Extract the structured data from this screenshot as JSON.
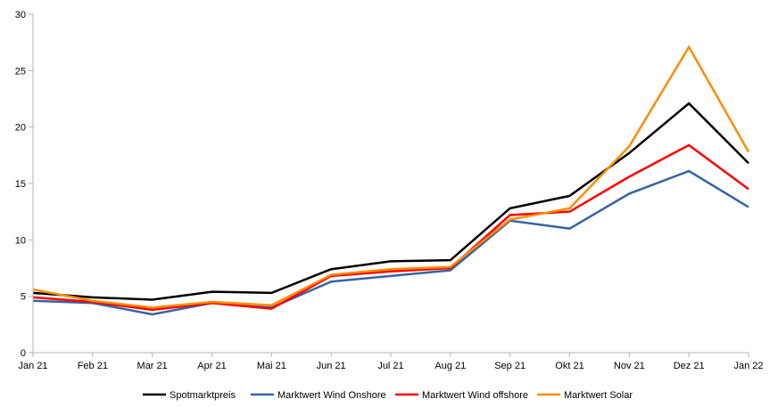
{
  "chart_data": {
    "type": "line",
    "title": "",
    "xlabel": "",
    "ylabel": "",
    "ylim": [
      0,
      30
    ],
    "yticks": [
      0,
      5,
      10,
      15,
      20,
      25,
      30
    ],
    "grid": false,
    "legend_position": "bottom",
    "categories": [
      "Jan 21",
      "Feb 21",
      "Mar 21",
      "Apr 21",
      "Mai 21",
      "Jun 21",
      "Jul 21",
      "Aug 21",
      "Sep 21",
      "Okt 21",
      "Nov 21",
      "Dez 21",
      "Jan 22"
    ],
    "series": [
      {
        "name": "Spotmarktpreis",
        "color": "#000000",
        "values": [
          5.3,
          4.9,
          4.7,
          5.4,
          5.3,
          7.4,
          8.1,
          8.2,
          12.8,
          13.9,
          17.7,
          22.1,
          16.8
        ]
      },
      {
        "name": "Marktwert Wind Onshore",
        "color": "#3465a4",
        "values": [
          4.6,
          4.4,
          3.4,
          4.4,
          4.0,
          6.3,
          6.8,
          7.3,
          11.7,
          11.0,
          14.1,
          16.1,
          12.9
        ]
      },
      {
        "name": "Marktwert Wind offshore",
        "color": "#ff0000",
        "values": [
          4.9,
          4.5,
          3.8,
          4.4,
          3.9,
          6.8,
          7.2,
          7.5,
          12.2,
          12.5,
          15.6,
          18.4,
          14.5
        ]
      },
      {
        "name": "Marktwert Solar",
        "color": "#ff8c00",
        "values": [
          5.6,
          4.6,
          4.0,
          4.5,
          4.2,
          6.9,
          7.4,
          7.6,
          11.8,
          12.8,
          18.3,
          27.1,
          17.8
        ]
      }
    ]
  }
}
